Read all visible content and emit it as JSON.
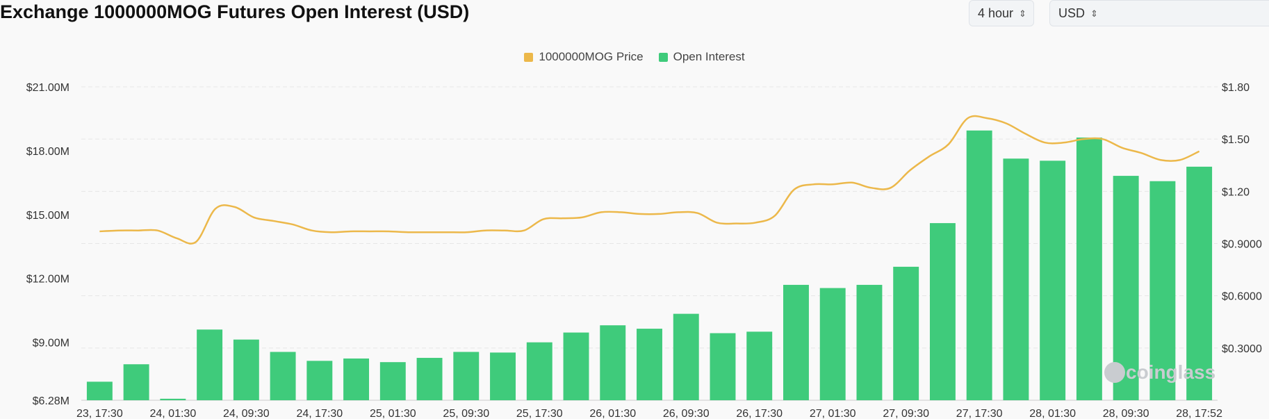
{
  "header": {
    "title": "Exchange 1000000MOG Futures Open Interest (USD)",
    "interval_label": "4 hour",
    "currency_label": "USD"
  },
  "colors": {
    "price": "#ecb84a",
    "open_interest": "#3fcb7b",
    "grid": "#e6e6e6"
  },
  "icons": {
    "interval_toggle": "chevron-up-down-icon",
    "watermark": "coinglass-logo"
  },
  "chart_data": {
    "type": "bar",
    "title": "Exchange 1000000MOG Futures Open Interest (USD)",
    "legend": {
      "position": "top-center",
      "entries": [
        "1000000MOG Price",
        "Open Interest"
      ]
    },
    "grid": true,
    "watermark": "coinglass",
    "x_tick_labels": [
      "23, 17:30",
      "24, 01:30",
      "24, 09:30",
      "24, 17:30",
      "25, 01:30",
      "25, 09:30",
      "25, 17:30",
      "26, 01:30",
      "26, 09:30",
      "26, 17:30",
      "27, 01:30",
      "27, 09:30",
      "27, 17:30",
      "28, 01:30",
      "28, 09:30",
      "28, 17:52"
    ],
    "y_left": {
      "ticks": [
        "$6.28M",
        "$9.00M",
        "$12.00M",
        "$15.00M",
        "$18.00M",
        "$21.00M"
      ],
      "range": [
        6.28,
        21.0
      ],
      "unit": "$M"
    },
    "y_right": {
      "ticks": [
        "$0.3000",
        "$0.6000",
        "$0.9000",
        "$1.20",
        "$1.50",
        "$1.80"
      ],
      "range": [
        0,
        1.8
      ],
      "unit": "$"
    },
    "series": [
      {
        "name": "Open Interest",
        "type": "bar",
        "axis": "left",
        "values": [
          7.15,
          7.97,
          6.35,
          9.6,
          9.13,
          8.55,
          8.13,
          8.24,
          8.07,
          8.27,
          8.55,
          8.52,
          9.0,
          9.46,
          9.8,
          9.64,
          10.34,
          9.43,
          9.5,
          11.7,
          11.55,
          11.7,
          12.55,
          14.6,
          18.95,
          17.63,
          17.53,
          18.62,
          16.82,
          16.57,
          17.25
        ]
      },
      {
        "name": "1000000MOG Price",
        "type": "line",
        "axis": "right",
        "values": [
          0.97,
          0.975,
          0.975,
          0.975,
          0.93,
          0.91,
          1.1,
          1.11,
          1.05,
          1.03,
          1.01,
          0.975,
          0.965,
          0.97,
          0.97,
          0.97,
          0.965,
          0.965,
          0.965,
          0.965,
          0.975,
          0.975,
          0.975,
          1.04,
          1.045,
          1.05,
          1.08,
          1.08,
          1.07,
          1.07,
          1.08,
          1.075,
          1.02,
          1.015,
          1.02,
          1.06,
          1.21,
          1.24,
          1.24,
          1.25,
          1.22,
          1.22,
          1.32,
          1.4,
          1.47,
          1.62,
          1.62,
          1.59,
          1.53,
          1.48,
          1.48,
          1.5,
          1.5,
          1.45,
          1.42,
          1.38,
          1.38,
          1.43
        ]
      }
    ]
  }
}
